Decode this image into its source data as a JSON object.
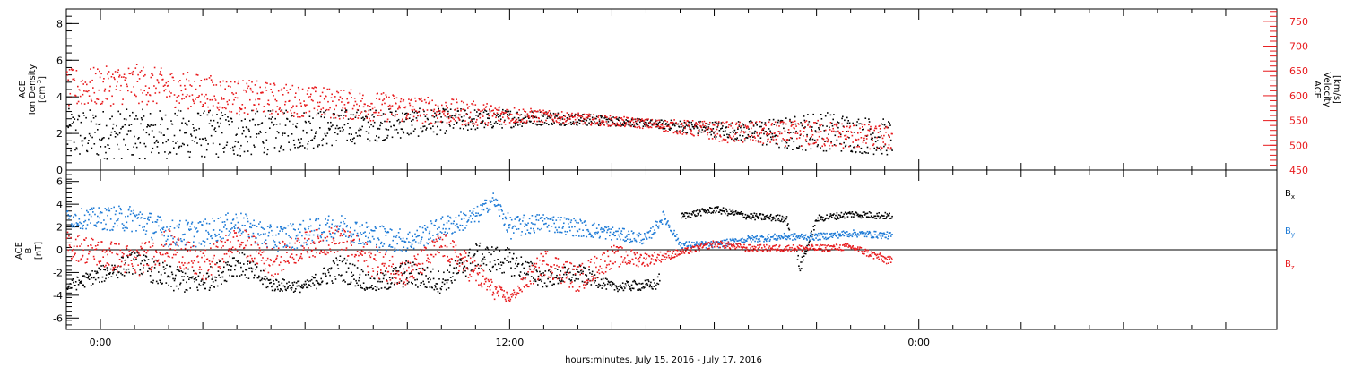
{
  "chart_data": [
    {
      "type": "scatter",
      "panel": "top",
      "xlabel": "hours:minutes, July 15, 2016 - July 17, 2016",
      "x_ticks": [
        {
          "hour": 0,
          "label": "0:00"
        },
        {
          "hour": 12,
          "label": "12:00"
        },
        {
          "hour": 24,
          "label": "0:00"
        }
      ],
      "xlim_hours": [
        -1,
        34.5
      ],
      "y_left": {
        "label_lines": [
          "ACE",
          "Ion Density"
        ],
        "unit_base": "[cm",
        "unit_sup": "-3",
        "unit_end": "]",
        "lim": [
          0,
          8.8
        ],
        "ticks": [
          0,
          2,
          4,
          6,
          8
        ],
        "color": "#000000"
      },
      "y_right": {
        "label_lines": [
          "ACE",
          "Velocity",
          "[km/s]"
        ],
        "lim": [
          450,
          775
        ],
        "ticks": [
          450,
          500,
          550,
          600,
          650,
          700,
          750
        ],
        "color": "#e8191c"
      },
      "series": [
        {
          "axis": "left",
          "color": "#000000",
          "x_range": [
            -1,
            23.2
          ],
          "trend_hours": [
            -1,
            4,
            8,
            11,
            13,
            16,
            18.5,
            20,
            21,
            23.2
          ],
          "trend_values": [
            2.0,
            2.0,
            2.5,
            2.8,
            2.9,
            2.6,
            2.2,
            2.0,
            2.2,
            1.8
          ],
          "scatter": [
            1.4,
            1.3,
            0.9,
            0.6,
            0.4,
            0.2,
            0.5,
            0.9,
            1.1,
            1.0
          ]
        },
        {
          "axis": "right",
          "color": "#e8191c",
          "x_range": [
            -1,
            23.2
          ],
          "trend_hours": [
            -1,
            1,
            4,
            8,
            11,
            13,
            16,
            18.5,
            20,
            21,
            23.2
          ],
          "trend_values": [
            615,
            625,
            600,
            580,
            565,
            560,
            545,
            527,
            525,
            525,
            515
          ],
          "scatter": [
            40,
            40,
            35,
            30,
            25,
            12,
            10,
            22,
            25,
            28,
            25
          ]
        }
      ]
    },
    {
      "type": "scatter",
      "panel": "bottom",
      "y_left": {
        "label_lines": [
          "ACE",
          "B",
          "[nT]"
        ],
        "lim": [
          -7,
          7
        ],
        "ticks": [
          -6,
          -4,
          -2,
          0,
          2,
          4,
          6
        ],
        "color": "#000000"
      },
      "zero_line": true,
      "series": [
        {
          "name_base": "B",
          "name_sub": "x",
          "color": "#000000",
          "x_range": [
            -1,
            23.2
          ],
          "gaps": [
            [
              16.4,
              17.0
            ],
            [
              20.2,
              20.4
            ]
          ],
          "trend_hours": [
            -1,
            1,
            2,
            3,
            4,
            5,
            6,
            7,
            8,
            9,
            10,
            11,
            12,
            13,
            14,
            15,
            16.3,
            17.0,
            18,
            19,
            20.1,
            20.5,
            21,
            22,
            23.2
          ],
          "trend_values": [
            -3.2,
            -1,
            -2.5,
            -2.8,
            -1,
            -3.0,
            -3.2,
            -1.5,
            -3.0,
            -2.0,
            -2.8,
            -0.5,
            -1.0,
            -2.5,
            -2.0,
            -3.2,
            -3.0,
            3.0,
            3.6,
            3.0,
            2.8,
            -1.5,
            2.8,
            3.2,
            3.0
          ],
          "scatter": [
            0.5,
            1.0,
            1.2,
            1.0,
            1.2,
            0.6,
            0.5,
            1.2,
            0.8,
            1.2,
            1.0,
            1.2,
            1.2,
            0.8,
            0.8,
            0.4,
            0.5,
            0.3,
            0.3,
            0.3,
            0.3,
            0.5,
            0.3,
            0.3,
            0.3
          ]
        },
        {
          "name_base": "B",
          "name_sub": "y",
          "color": "#1d7ad6",
          "x_range": [
            -1,
            23.2
          ],
          "trend_hours": [
            -1,
            1,
            2,
            3,
            4,
            5,
            6,
            7,
            8,
            9,
            10,
            11,
            11.5,
            12,
            13,
            14,
            15,
            16,
            16.5,
            17,
            18,
            19,
            20,
            21,
            22,
            23.2
          ],
          "trend_values": [
            2.8,
            2.8,
            1.5,
            1.5,
            2.5,
            1.0,
            1.5,
            2.2,
            1.2,
            0.8,
            2.0,
            3.0,
            4.5,
            2.0,
            2.5,
            2.0,
            1.5,
            1.0,
            3.0,
            0.5,
            0.5,
            1.0,
            1.2,
            1.2,
            1.5,
            1.3
          ],
          "scatter": [
            0.8,
            1.2,
            1.2,
            1.2,
            1.0,
            1.2,
            1.2,
            1.0,
            1.2,
            1.0,
            1.0,
            0.8,
            0.6,
            1.0,
            0.8,
            0.8,
            0.6,
            0.5,
            0.5,
            0.3,
            0.3,
            0.3,
            0.3,
            0.3,
            0.3,
            0.3
          ]
        },
        {
          "name_base": "B",
          "name_sub": "z",
          "color": "#e8191c",
          "x_range": [
            -1,
            23.2
          ],
          "trend_hours": [
            -1,
            1,
            2,
            3,
            4,
            5,
            6,
            7,
            8,
            9,
            10,
            11,
            11.5,
            12,
            13,
            14,
            15,
            16,
            17,
            18,
            19,
            20,
            21,
            22,
            23.2
          ],
          "trend_values": [
            0.5,
            -1.0,
            0.5,
            -1.5,
            1.0,
            -1.0,
            0.5,
            1.0,
            -1.0,
            -2.0,
            0.5,
            -2.0,
            -3.5,
            -4.2,
            -1.0,
            -2.5,
            -0.5,
            -0.8,
            -0.2,
            0.6,
            0.2,
            0.2,
            0.2,
            0.3,
            -1.0
          ],
          "scatter": [
            1.2,
            1.4,
            1.4,
            1.4,
            1.2,
            1.4,
            1.2,
            1.2,
            1.4,
            1.2,
            1.2,
            1.2,
            0.8,
            0.4,
            1.2,
            1.2,
            1.0,
            0.6,
            0.3,
            0.3,
            0.3,
            0.3,
            0.3,
            0.3,
            0.4
          ]
        }
      ]
    }
  ]
}
